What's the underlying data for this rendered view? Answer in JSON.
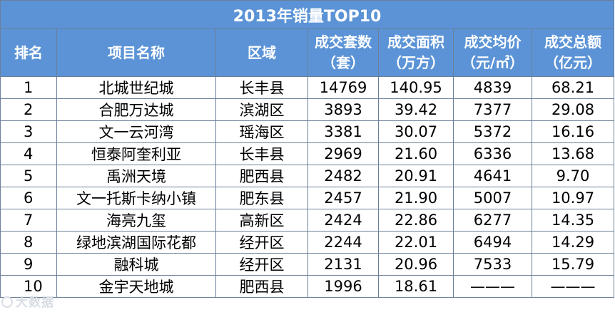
{
  "table": {
    "title": "2013年销量TOP10",
    "headers": [
      {
        "line1": "排名",
        "line2": ""
      },
      {
        "line1": "项目名称",
        "line2": ""
      },
      {
        "line1": "区域",
        "line2": ""
      },
      {
        "line1": "成交套数",
        "line2": "（套）"
      },
      {
        "line1": "成交面积",
        "line2": "（万方）"
      },
      {
        "line1": "成交均价",
        "line2": "（元/㎡）"
      },
      {
        "line1": "成交总额",
        "line2": "（亿元）"
      }
    ],
    "rows": [
      {
        "rank": "1",
        "name": "北城世纪城",
        "district": "长丰县",
        "units": "14769",
        "area": "140.95",
        "price": "4839",
        "total": "68.21"
      },
      {
        "rank": "2",
        "name": "合肥万达城",
        "district": "滨湖区",
        "units": "3893",
        "area": "39.42",
        "price": "7377",
        "total": "29.08"
      },
      {
        "rank": "3",
        "name": "文一云河湾",
        "district": "瑶海区",
        "units": "3381",
        "area": "30.07",
        "price": "5372",
        "total": "16.16"
      },
      {
        "rank": "4",
        "name": "恒泰阿奎利亚",
        "district": "长丰县",
        "units": "2969",
        "area": "21.60",
        "price": "6336",
        "total": "13.68"
      },
      {
        "rank": "5",
        "name": "禹洲天境",
        "district": "肥西县",
        "units": "2482",
        "area": "20.91",
        "price": "4641",
        "total": "9.70"
      },
      {
        "rank": "6",
        "name": "文一托斯卡纳小镇",
        "district": "肥东县",
        "units": "2457",
        "area": "21.90",
        "price": "5007",
        "total": "10.97"
      },
      {
        "rank": "7",
        "name": "海亮九玺",
        "district": "高新区",
        "units": "2424",
        "area": "22.86",
        "price": "6277",
        "total": "14.35"
      },
      {
        "rank": "8",
        "name": "绿地滨湖国际花都",
        "district": "经开区",
        "units": "2244",
        "area": "22.01",
        "price": "6494",
        "total": "14.29"
      },
      {
        "rank": "9",
        "name": "融科城",
        "district": "经开区",
        "units": "2131",
        "area": "20.96",
        "price": "7533",
        "total": "15.79"
      },
      {
        "rank": "10",
        "name": "金宇天地城",
        "district": "肥西县",
        "units": "1996",
        "area": "18.61",
        "price": "———",
        "total": "———"
      }
    ]
  },
  "watermark": "大数据",
  "colors": {
    "header_bg": "#5b93d6",
    "header_text": "#ffffff",
    "border": "#6b7f99"
  }
}
